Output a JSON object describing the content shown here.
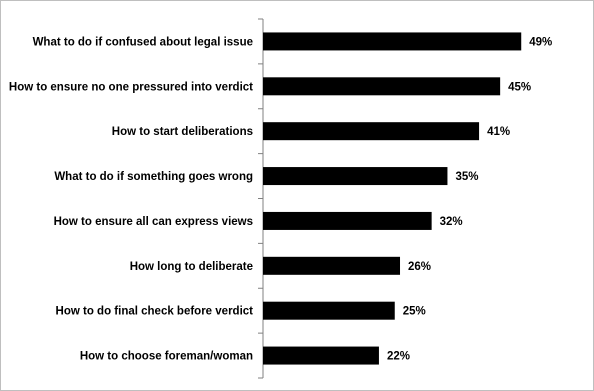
{
  "chart_data": {
    "type": "bar",
    "orientation": "horizontal",
    "categories": [
      "What to do if confused about legal issue",
      "How to ensure no one pressured into verdict",
      "How to start deliberations",
      "What to do if something goes wrong",
      "How to ensure all can express views",
      "How long to deliberate",
      "How to do final check before verdict",
      "How to choose foreman/woman"
    ],
    "values": [
      49,
      45,
      41,
      35,
      32,
      26,
      25,
      22
    ],
    "data_labels": [
      "49%",
      "45%",
      "41%",
      "35%",
      "32%",
      "26%",
      "25%",
      "22%"
    ],
    "bar_color": "#000000",
    "xlim": [
      0,
      100
    ],
    "x_axis_visible": false,
    "grid": false,
    "legend": "none"
  }
}
